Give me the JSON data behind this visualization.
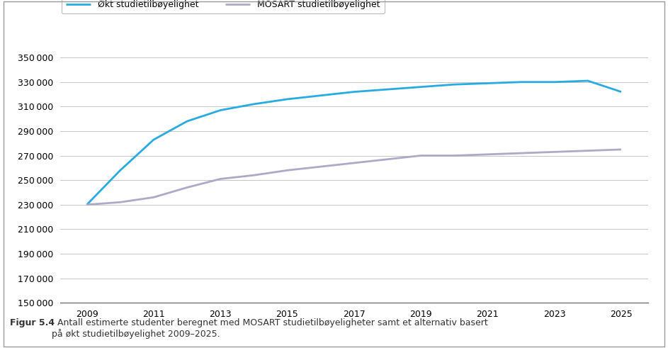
{
  "years": [
    2009,
    2010,
    2011,
    2012,
    2013,
    2014,
    2015,
    2016,
    2017,
    2018,
    2019,
    2020,
    2021,
    2022,
    2023,
    2024,
    2025
  ],
  "okt_line": [
    230000,
    258000,
    283000,
    298000,
    307000,
    312000,
    316000,
    319000,
    322000,
    324000,
    326000,
    328000,
    329000,
    330000,
    330000,
    331000,
    322000
  ],
  "mosart_line": [
    230000,
    232000,
    236000,
    244000,
    251000,
    254000,
    258000,
    261000,
    264000,
    267000,
    270000,
    270000,
    271000,
    272000,
    273000,
    274000,
    275000
  ],
  "okt_color": "#29ABE2",
  "mosart_color": "#B0A8C8",
  "okt_label": "Økt studietilbøyelighet",
  "mosart_label": "MOSART studietilbøyelighet",
  "ylim": [
    150000,
    360000
  ],
  "yticks": [
    150000,
    170000,
    190000,
    210000,
    230000,
    250000,
    270000,
    290000,
    310000,
    330000,
    350000
  ],
  "xticks": [
    2009,
    2011,
    2013,
    2015,
    2017,
    2019,
    2021,
    2023,
    2025
  ],
  "caption_bold": "Figur 5.4",
  "caption_normal": "  Antall estimerte studenter beregnet med MOSART studietilbøyeligheter samt et alternativ basert\npå økt studietilbøyelighet 2009–2025.",
  "background_color": "#FFFFFF",
  "line_width": 2.0,
  "border_color": "#999999"
}
